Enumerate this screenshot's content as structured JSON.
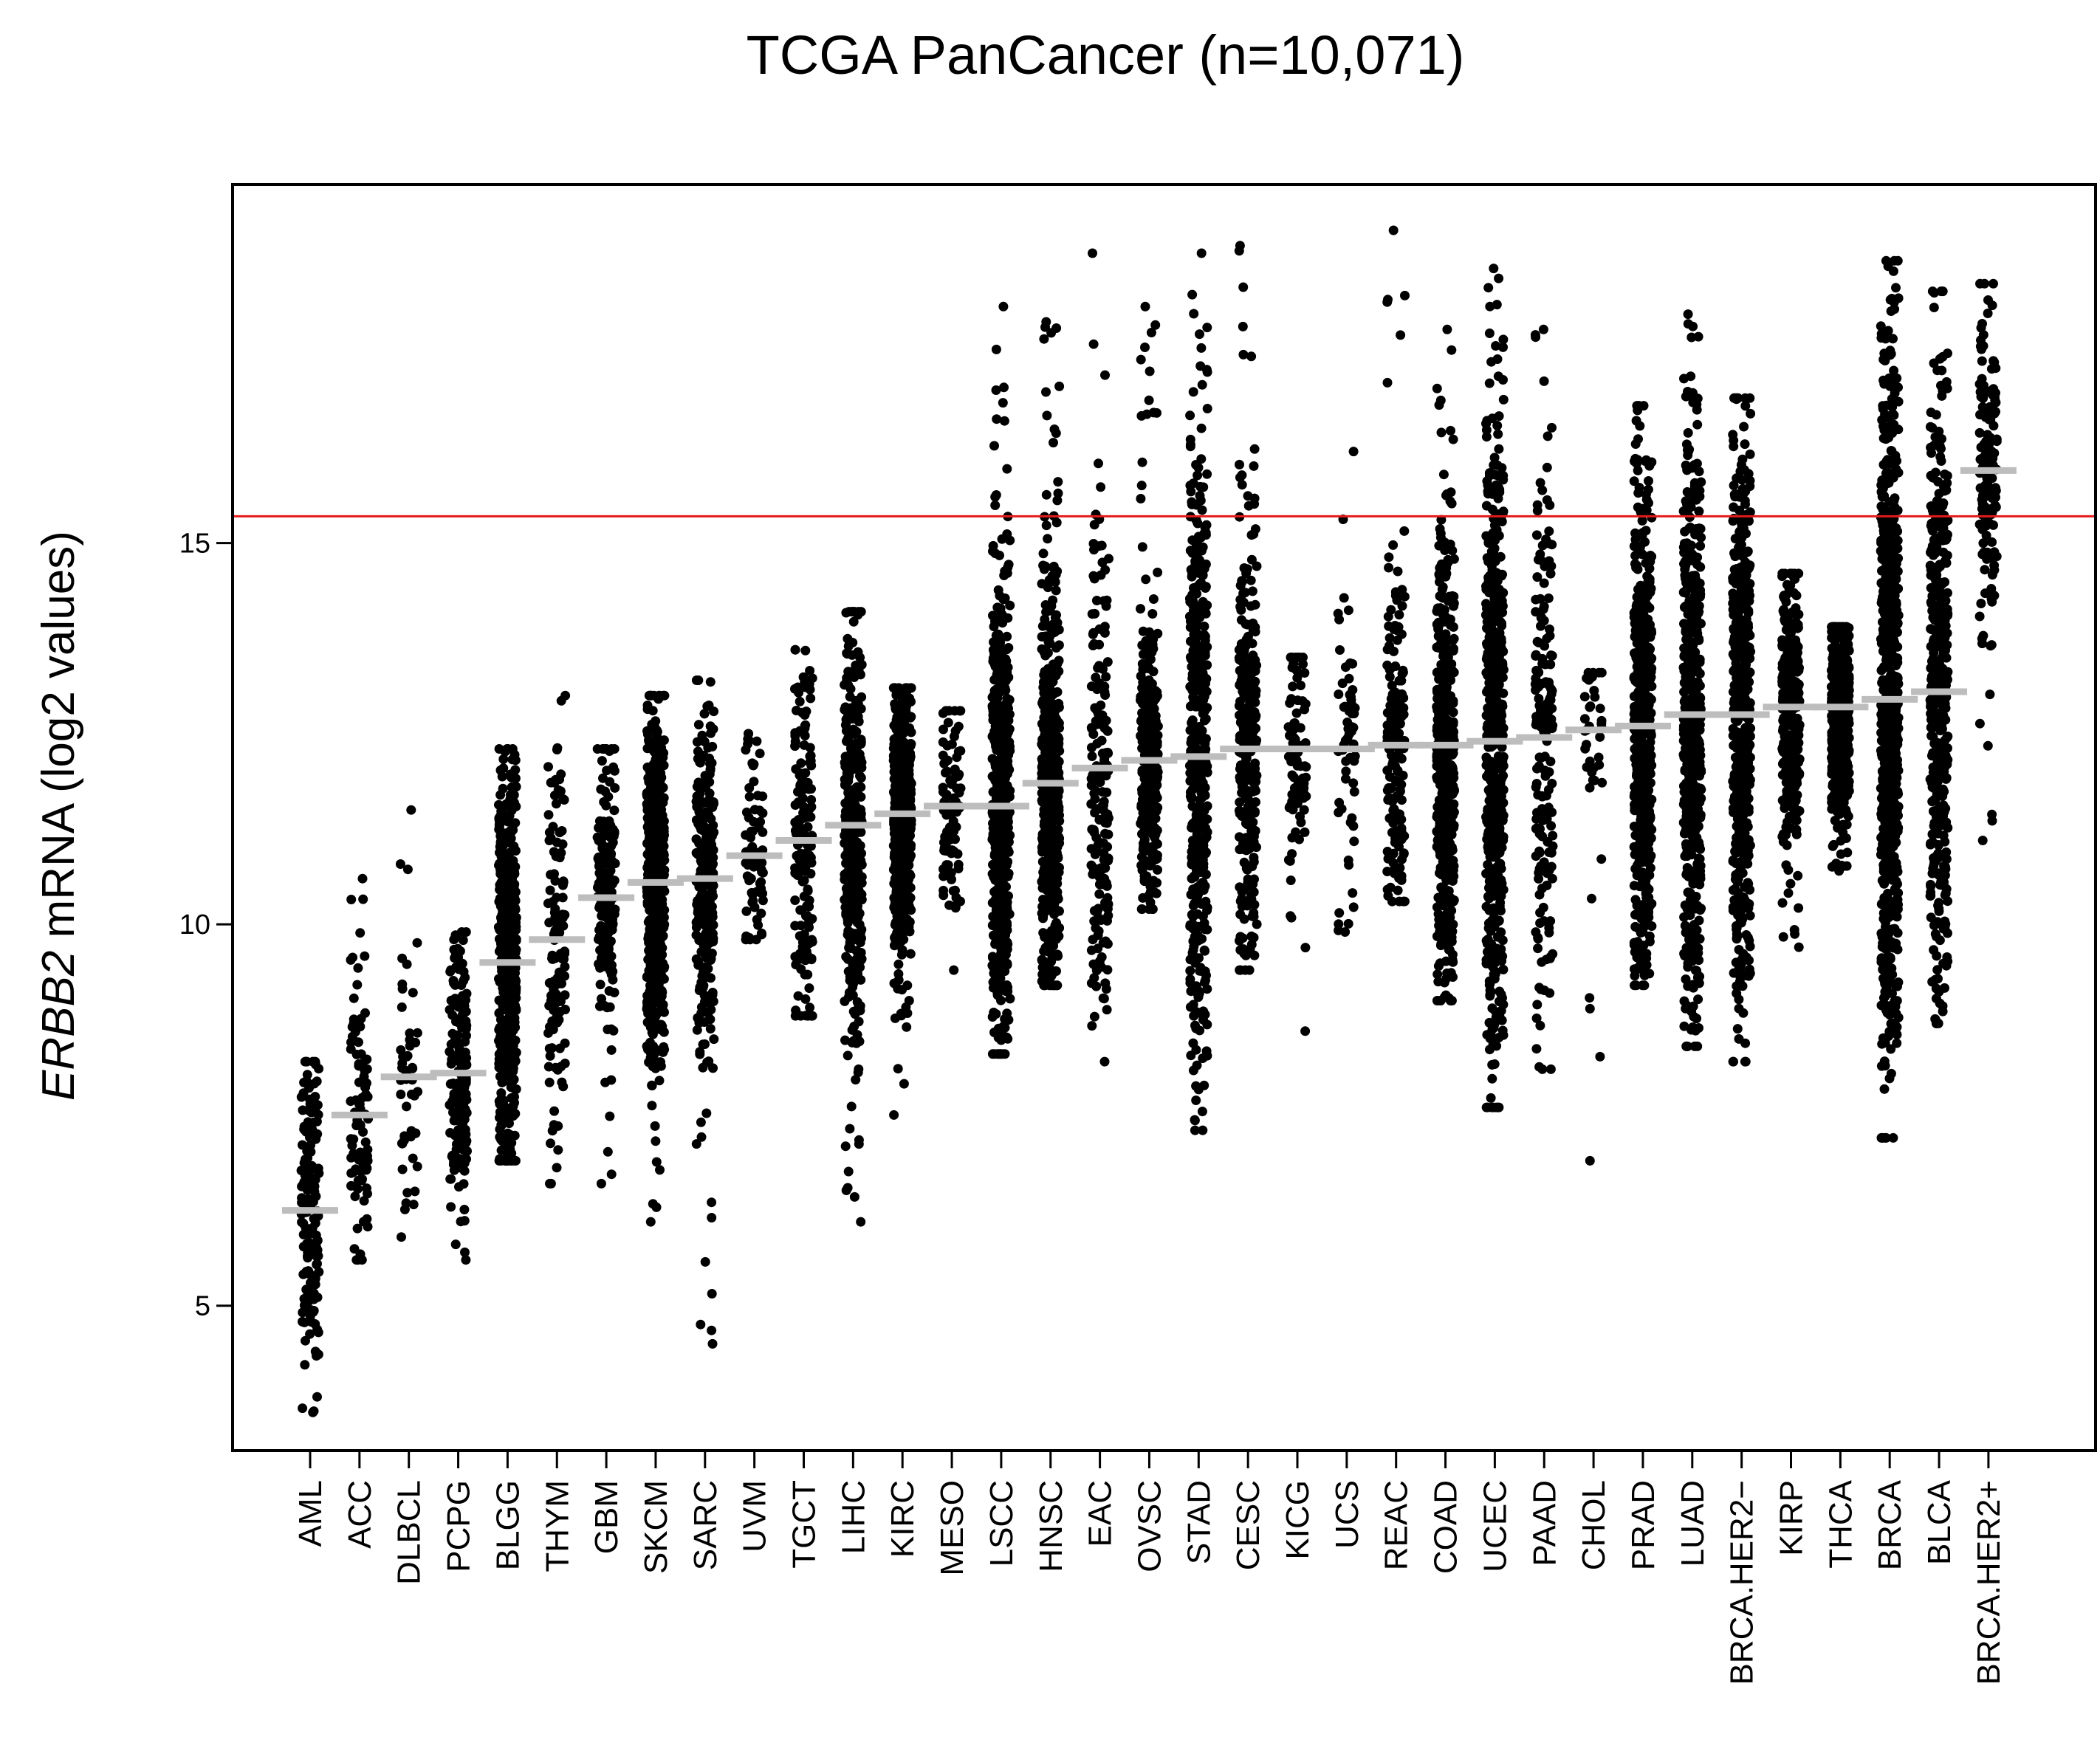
{
  "chart_data": {
    "type": "scatter",
    "title": "TCGA PanCancer (n=10,071)",
    "ylabel_gene": "ERBB2",
    "ylabel_rest": " mRNA (log2 values)",
    "xlabel": "",
    "ylim": [
      3.1,
      19.7
    ],
    "yticks": [
      5,
      10,
      15
    ],
    "grid": false,
    "legend": "none",
    "threshold": 15.35,
    "colors": {
      "points": "#000000",
      "median": "#bdbdbd",
      "threshold": "#e41a1c",
      "frame": "#000000"
    },
    "categories": [
      "AML",
      "ACC",
      "DLBCL",
      "PCPG",
      "BLGG",
      "THYM",
      "GBM",
      "SKCM",
      "SARC",
      "UVM",
      "TGCT",
      "LIHC",
      "KIRC",
      "MESO",
      "LSCC",
      "HNSC",
      "EAC",
      "OVSC",
      "STAD",
      "CESC",
      "KICG",
      "UCS",
      "REAC",
      "COAD",
      "UCEC",
      "PAAD",
      "CHOL",
      "PRAD",
      "LUAD",
      "BRCA.HER2−",
      "KIRP",
      "THCA",
      "BRCA",
      "BLCA",
      "BRCA.HER2+"
    ],
    "medians": [
      6.25,
      7.5,
      8.0,
      8.05,
      9.5,
      9.8,
      10.35,
      10.55,
      10.6,
      10.9,
      11.1,
      11.3,
      11.45,
      11.55,
      11.55,
      11.85,
      12.05,
      12.15,
      12.2,
      12.3,
      12.3,
      12.3,
      12.35,
      12.35,
      12.4,
      12.45,
      12.55,
      12.6,
      12.75,
      12.75,
      12.85,
      12.85,
      12.95,
      13.05,
      15.95
    ],
    "ranges": [
      [
        3.6,
        8.2
      ],
      [
        5.6,
        10.6
      ],
      [
        5.9,
        11.5
      ],
      [
        5.6,
        9.9
      ],
      [
        6.9,
        12.3
      ],
      [
        6.6,
        13.0
      ],
      [
        6.6,
        12.3
      ],
      [
        6.1,
        13.0
      ],
      [
        4.5,
        13.2
      ],
      [
        9.8,
        12.5
      ],
      [
        8.8,
        13.6
      ],
      [
        6.1,
        14.1
      ],
      [
        7.5,
        13.1
      ],
      [
        9.4,
        12.8
      ],
      [
        8.3,
        18.1
      ],
      [
        9.2,
        17.9
      ],
      [
        8.2,
        18.8
      ],
      [
        10.2,
        18.1
      ],
      [
        7.3,
        18.8
      ],
      [
        9.4,
        18.9
      ],
      [
        8.6,
        13.5
      ],
      [
        9.9,
        16.2
      ],
      [
        10.3,
        19.1
      ],
      [
        9.0,
        17.8
      ],
      [
        7.6,
        18.6
      ],
      [
        8.1,
        17.8
      ],
      [
        6.9,
        13.3
      ],
      [
        9.2,
        16.8
      ],
      [
        8.4,
        18.0
      ],
      [
        8.2,
        16.9
      ],
      [
        9.7,
        14.6
      ],
      [
        10.7,
        13.9
      ],
      [
        7.2,
        18.7
      ],
      [
        8.7,
        18.3
      ],
      [
        11.1,
        18.4
      ]
    ],
    "counts": [
      160,
      90,
      50,
      180,
      520,
      120,
      170,
      470,
      260,
      80,
      150,
      370,
      530,
      90,
      500,
      520,
      180,
      300,
      420,
      300,
      90,
      60,
      170,
      460,
      550,
      180,
      40,
      500,
      520,
      500,
      290,
      510,
      700,
      410,
      150
    ]
  }
}
